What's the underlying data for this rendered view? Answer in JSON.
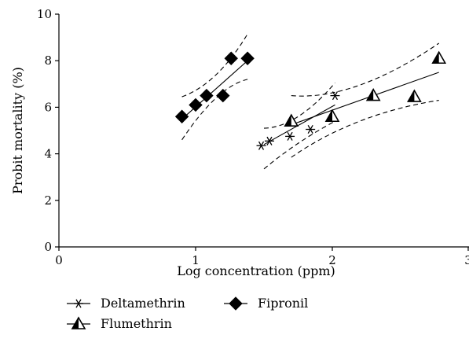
{
  "chart_data": {
    "type": "scatter",
    "xlabel": "Log concentration (ppm)",
    "ylabel": "Probit mortality (%)",
    "xlim": [
      0,
      3
    ],
    "ylim": [
      0,
      10
    ],
    "xticks": [
      0,
      1,
      2,
      3
    ],
    "xtick_labels": [
      "0",
      "1",
      "2",
      "3"
    ],
    "yticks": [
      0,
      2,
      4,
      6,
      8,
      10
    ],
    "ytick_labels": [
      "0",
      "2",
      "4",
      "6",
      "8",
      "10"
    ],
    "grid": false,
    "legend_position": "bottom-left",
    "legend_rows": [
      [
        {
          "name": "Deltamethrin",
          "marker": "asterisk"
        },
        {
          "name": "Fipronil",
          "marker": "diamond"
        }
      ],
      [
        {
          "name": "Flumethrin",
          "marker": "triangle"
        }
      ]
    ],
    "series": [
      {
        "name": "Deltamethrin",
        "marker": "asterisk",
        "points": [
          [
            1.48,
            4.35
          ],
          [
            1.54,
            4.55
          ],
          [
            1.69,
            4.75
          ],
          [
            1.84,
            5.05
          ],
          [
            2.02,
            6.5
          ]
        ],
        "fit": [
          [
            1.5,
            4.4
          ],
          [
            2.02,
            6.1
          ]
        ],
        "ci_upper": [
          [
            1.5,
            5.1
          ],
          [
            1.75,
            5.6
          ],
          [
            2.02,
            7.05
          ]
        ],
        "ci_lower": [
          [
            1.5,
            3.35
          ],
          [
            1.75,
            4.45
          ],
          [
            2.02,
            5.4
          ]
        ]
      },
      {
        "name": "Flumethrin",
        "marker": "triangle",
        "points": [
          [
            1.7,
            5.4
          ],
          [
            2.0,
            5.6
          ],
          [
            2.3,
            6.5
          ],
          [
            2.6,
            6.45
          ],
          [
            2.78,
            8.1
          ]
        ],
        "fit": [
          [
            1.7,
            5.25
          ],
          [
            2.78,
            7.5
          ]
        ],
        "ci_upper": [
          [
            1.7,
            6.5
          ],
          [
            2.2,
            6.95
          ],
          [
            2.78,
            8.75
          ]
        ],
        "ci_lower": [
          [
            1.7,
            3.85
          ],
          [
            2.2,
            5.4
          ],
          [
            2.78,
            6.3
          ]
        ]
      },
      {
        "name": "Fipronil",
        "marker": "diamond",
        "points": [
          [
            0.9,
            5.6
          ],
          [
            1.0,
            6.1
          ],
          [
            1.08,
            6.5
          ],
          [
            1.2,
            6.5
          ],
          [
            1.26,
            8.1
          ],
          [
            1.38,
            8.1
          ]
        ],
        "fit": [
          [
            0.93,
            5.65
          ],
          [
            1.38,
            8.0
          ]
        ],
        "ci_upper": [
          [
            0.9,
            6.45
          ],
          [
            1.15,
            7.4
          ],
          [
            1.38,
            9.15
          ]
        ],
        "ci_lower": [
          [
            0.9,
            4.6
          ],
          [
            1.15,
            6.4
          ],
          [
            1.38,
            7.2
          ]
        ]
      }
    ]
  }
}
